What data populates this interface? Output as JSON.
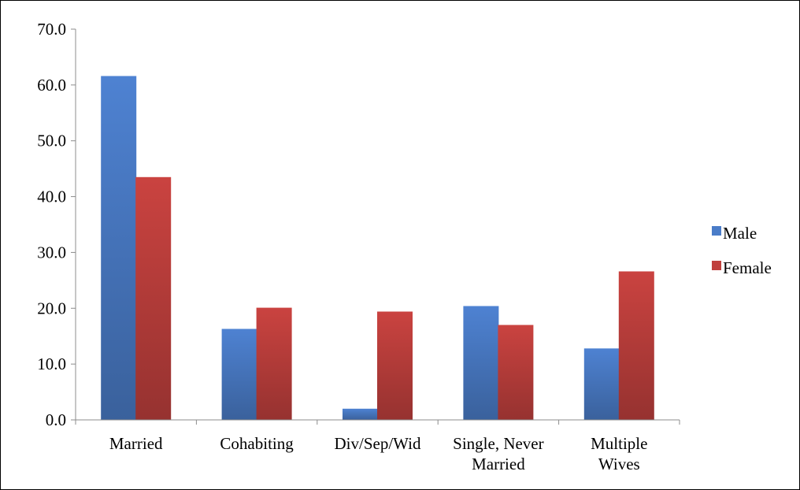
{
  "chart_data": {
    "type": "bar",
    "title": "",
    "xlabel": "",
    "ylabel": "",
    "categories": [
      [
        "Married"
      ],
      [
        "Cohabiting"
      ],
      [
        "Div/Sep/Wid"
      ],
      [
        "Single, Never",
        "Married"
      ],
      [
        "Multiple",
        "Wives"
      ]
    ],
    "series": [
      {
        "name": "Male",
        "color": "#4A7CC8",
        "values": [
          61.6,
          16.3,
          2.0,
          20.4,
          12.8
        ]
      },
      {
        "name": "Female",
        "color": "#C0403D",
        "values": [
          43.5,
          20.1,
          19.4,
          17.0,
          26.6
        ]
      }
    ],
    "ylim": [
      0,
      70
    ],
    "ytick_step": 10,
    "ytick_labels": [
      "0.0",
      "10.0",
      "20.0",
      "30.0",
      "40.0",
      "50.0",
      "60.0",
      "70.0"
    ],
    "grid": false,
    "legend_position": "right"
  }
}
